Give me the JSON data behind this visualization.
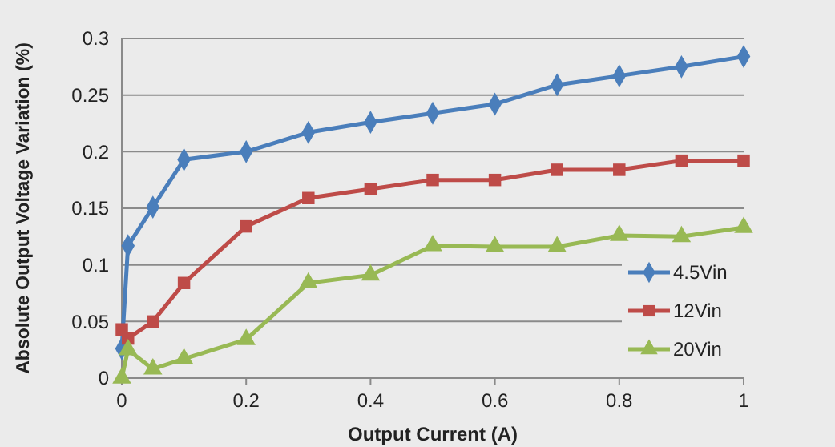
{
  "chart_data": {
    "type": "line",
    "xlabel": "Output Current (A)",
    "ylabel": "Absolute Output Voltage Variation (%)",
    "x": [
      0,
      0.01,
      0.05,
      0.1,
      0.2,
      0.3,
      0.4,
      0.5,
      0.6,
      0.7,
      0.8,
      0.9,
      1
    ],
    "series": [
      {
        "name": "4.5Vin",
        "color": "#4a7ebb",
        "marker": "diamond",
        "values": [
          0.026,
          0.117,
          0.151,
          0.193,
          0.2,
          0.217,
          0.226,
          0.234,
          0.242,
          0.259,
          0.267,
          0.275,
          0.284
        ]
      },
      {
        "name": "12Vin",
        "color": "#be4b48",
        "marker": "square",
        "values": [
          0.043,
          0.035,
          0.05,
          0.084,
          0.134,
          0.159,
          0.167,
          0.175,
          0.175,
          0.184,
          0.184,
          0.192,
          0.192
        ]
      },
      {
        "name": "20Vin",
        "color": "#98b954",
        "marker": "triangle",
        "values": [
          0,
          0.025,
          0.008,
          0.017,
          0.034,
          0.084,
          0.091,
          0.117,
          0.116,
          0.116,
          0.126,
          0.125,
          0.133
        ]
      }
    ],
    "xlim": [
      0,
      1
    ],
    "xticks": [
      0,
      0.2,
      0.4,
      0.6,
      0.8,
      1
    ],
    "ylim": [
      0,
      0.3
    ],
    "yticks": [
      0,
      0.05,
      0.1,
      0.15,
      0.2,
      0.25,
      0.3
    ],
    "grid": "y",
    "legend": "bottom right",
    "line_style": "solid"
  }
}
